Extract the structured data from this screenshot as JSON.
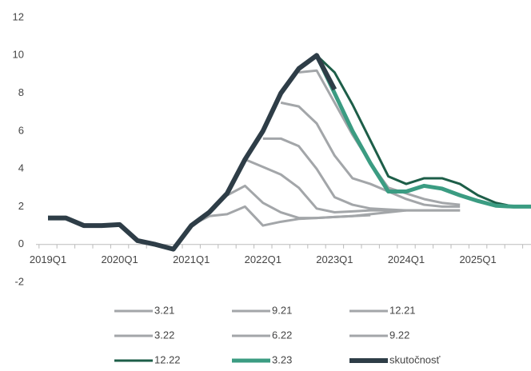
{
  "chart_data": {
    "type": "line",
    "categories": [
      "2019Q1",
      null,
      null,
      null,
      "2020Q1",
      null,
      null,
      null,
      "2021Q1",
      null,
      null,
      null,
      "2022Q1",
      null,
      null,
      null,
      "2023Q1",
      null,
      null,
      null,
      "2024Q1",
      null,
      null,
      null,
      "2025Q1",
      null,
      null,
      null
    ],
    "ylim": [
      -2,
      12
    ],
    "yticks": [
      -2,
      0,
      2,
      4,
      6,
      8,
      10,
      12
    ],
    "series": [
      {
        "name": "3.21",
        "color": "#a3a6a9",
        "width": 3,
        "values": [
          null,
          null,
          null,
          null,
          null,
          null,
          null,
          null,
          1.0,
          1.5,
          1.6,
          2.0,
          1.0,
          1.2,
          1.35,
          1.4,
          1.45,
          1.5,
          1.55,
          null,
          null,
          null,
          null,
          null,
          null,
          null,
          null,
          null
        ]
      },
      {
        "name": "9.21",
        "color": "#a3a6a9",
        "width": 3,
        "values": [
          null,
          null,
          null,
          null,
          null,
          null,
          null,
          null,
          null,
          null,
          2.6,
          3.1,
          2.2,
          1.7,
          1.4,
          1.4,
          1.45,
          1.5,
          1.6,
          1.7,
          1.8,
          null,
          null,
          null,
          null,
          null,
          null,
          null
        ]
      },
      {
        "name": "12.21",
        "color": "#a3a6a9",
        "width": 3,
        "values": [
          null,
          null,
          null,
          null,
          null,
          null,
          null,
          null,
          null,
          null,
          null,
          4.5,
          4.1,
          3.7,
          3.0,
          1.9,
          1.7,
          1.75,
          1.8,
          1.8,
          1.8,
          1.8,
          1.8,
          1.8,
          null,
          null,
          null,
          null
        ]
      },
      {
        "name": "3.22",
        "color": "#a3a6a9",
        "width": 3,
        "values": [
          null,
          null,
          null,
          null,
          null,
          null,
          null,
          null,
          null,
          null,
          null,
          null,
          5.6,
          5.6,
          5.2,
          4.0,
          2.5,
          2.1,
          1.9,
          1.85,
          1.8,
          1.8,
          1.8,
          1.8,
          null,
          null,
          null,
          null
        ]
      },
      {
        "name": "6.22",
        "color": "#a3a6a9",
        "width": 3,
        "values": [
          null,
          null,
          null,
          null,
          null,
          null,
          null,
          null,
          null,
          null,
          null,
          null,
          null,
          7.5,
          7.3,
          6.4,
          4.7,
          3.5,
          3.2,
          2.8,
          2.4,
          2.1,
          2.0,
          2.0,
          null,
          null,
          null,
          null
        ]
      },
      {
        "name": "9.22",
        "color": "#a3a6a9",
        "width": 3,
        "values": [
          null,
          null,
          null,
          null,
          null,
          null,
          null,
          null,
          null,
          null,
          null,
          null,
          null,
          null,
          9.1,
          9.2,
          7.5,
          5.8,
          4.3,
          3.0,
          2.7,
          2.4,
          2.2,
          2.1,
          null,
          null,
          null,
          null
        ]
      },
      {
        "name": "12.22",
        "color": "#1d5e48",
        "width": 3,
        "values": [
          null,
          null,
          null,
          null,
          null,
          null,
          null,
          null,
          null,
          null,
          null,
          null,
          null,
          null,
          null,
          10.0,
          9.1,
          7.4,
          5.5,
          3.6,
          3.2,
          3.5,
          3.5,
          3.2,
          2.6,
          2.2,
          2.0,
          2.0
        ]
      },
      {
        "name": "3.23",
        "color": "#3b9c82",
        "width": 5,
        "values": [
          null,
          null,
          null,
          null,
          null,
          null,
          null,
          null,
          null,
          null,
          null,
          null,
          null,
          null,
          null,
          10.0,
          8.0,
          6.0,
          4.3,
          2.8,
          2.8,
          3.1,
          2.95,
          2.6,
          2.3,
          2.05,
          2.0,
          2.0
        ]
      },
      {
        "name": "skutočnosť",
        "color": "#2e3d47",
        "width": 6,
        "values": [
          1.4,
          1.4,
          1.0,
          1.0,
          1.05,
          0.2,
          0.0,
          -0.25,
          1.0,
          1.7,
          2.7,
          4.5,
          6.0,
          8.0,
          9.3,
          10.0,
          8.2,
          null,
          null,
          null,
          null,
          null,
          null,
          null,
          null,
          null,
          null,
          null
        ]
      }
    ]
  }
}
